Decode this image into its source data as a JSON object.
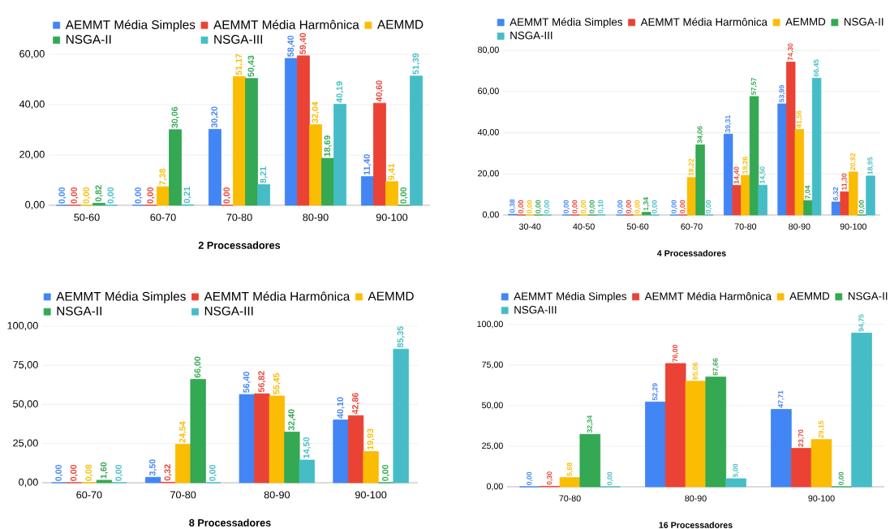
{
  "chart_data": [
    {
      "type": "bar",
      "xlabel": "2 Processadores",
      "categories": [
        "50-60",
        "60-70",
        "70-80",
        "80-90",
        "90-100"
      ],
      "ylim": [
        0,
        60
      ],
      "yticks": [
        {
          "value": 0,
          "label": "0,00"
        },
        {
          "value": 20,
          "label": "20,00"
        },
        {
          "value": 40,
          "label": "40,00"
        },
        {
          "value": 60,
          "label": "60,00"
        }
      ],
      "grid": "y",
      "legend": "top",
      "series": [
        {
          "name": "AEMMT Média Simples",
          "color": "#4285f4",
          "values": [
            0,
            0,
            30.2,
            58.4,
            11.4
          ],
          "value_labels": [
            "0,00",
            "0,00",
            "30,20",
            "58,40",
            "11,40"
          ]
        },
        {
          "name": "AEMMT Média Harmônica",
          "color": "#ea4335",
          "values": [
            0,
            0,
            0,
            59.4,
            40.6
          ],
          "value_labels": [
            "0,00",
            "0,00",
            "0,00",
            "59,40",
            "40,60"
          ]
        },
        {
          "name": "AEMMD",
          "color": "#fbbc04",
          "values": [
            0,
            7.38,
            51.17,
            32.04,
            9.41
          ],
          "value_labels": [
            "0,00",
            "7,38",
            "51,17",
            "32,04",
            "9,41"
          ]
        },
        {
          "name": "NSGA-II",
          "color": "#34a853",
          "values": [
            0.82,
            30.06,
            50.43,
            18.69,
            0
          ],
          "value_labels": [
            "0,82",
            "30,06",
            "50,43",
            "18,69",
            "0,00"
          ]
        },
        {
          "name": "NSGA-III",
          "color": "#46bdc6",
          "values": [
            0,
            0.21,
            8.21,
            40.19,
            51.39
          ],
          "value_labels": [
            "0,00",
            "0,21",
            "8,21",
            "40,19",
            "51,39"
          ]
        }
      ]
    },
    {
      "type": "bar",
      "xlabel": "4 Processadores",
      "categories": [
        "30-40",
        "40-50",
        "50-60",
        "60-70",
        "70-80",
        "80-90",
        "90-100"
      ],
      "ylim": [
        0,
        80
      ],
      "yticks": [
        {
          "value": 0,
          "label": "0,00"
        },
        {
          "value": 20,
          "label": "20,00"
        },
        {
          "value": 40,
          "label": "40,00"
        },
        {
          "value": 60,
          "label": "60,00"
        },
        {
          "value": 80,
          "label": "80,00"
        }
      ],
      "grid": "y",
      "legend": "top",
      "series": [
        {
          "name": "AEMMT Média Simples",
          "color": "#4285f4",
          "values": [
            0.38,
            0,
            0,
            0,
            39.31,
            53.99,
            6.32
          ],
          "value_labels": [
            "0,38",
            "0,00",
            "0,00",
            "0,00",
            "39,31",
            "53,99",
            "6,32"
          ]
        },
        {
          "name": "AEMMT Média Harmônica",
          "color": "#ea4335",
          "values": [
            0,
            0,
            0,
            0,
            14.4,
            74.3,
            11.3
          ],
          "value_labels": [
            "0,00",
            "0,00",
            "0,00",
            "0,00",
            "14,40",
            "74,30",
            "11,30"
          ]
        },
        {
          "name": "AEMMD",
          "color": "#fbbc04",
          "values": [
            0,
            0,
            0,
            18.22,
            19.26,
            41.56,
            20.92
          ],
          "value_labels": [
            "0,00",
            "0,00",
            "0,00",
            "18,22",
            "19,26",
            "41,56",
            "20,92"
          ]
        },
        {
          "name": "NSGA-II",
          "color": "#34a853",
          "values": [
            0,
            0,
            1.34,
            34.06,
            57.57,
            7.04,
            0
          ],
          "value_labels": [
            "0,00",
            "0,00",
            "1,34",
            "34,06",
            "57,57",
            "7,04",
            "0,00"
          ]
        },
        {
          "name": "NSGA-III",
          "color": "#46bdc6",
          "values": [
            0,
            0.1,
            0,
            0,
            14.5,
            66.45,
            18.95
          ],
          "value_labels": [
            "0,00",
            "0,10",
            "0,00",
            "0,00",
            "14,50",
            "66,45",
            "18,95"
          ]
        }
      ]
    },
    {
      "type": "bar",
      "xlabel": "8 Processadores",
      "categories": [
        "60-70",
        "70-80",
        "80-90",
        "90-100"
      ],
      "ylim": [
        0,
        100
      ],
      "yticks": [
        {
          "value": 0,
          "label": "0,00"
        },
        {
          "value": 25,
          "label": "25,00"
        },
        {
          "value": 50,
          "label": "50,00"
        },
        {
          "value": 75,
          "label": "75,00"
        },
        {
          "value": 100,
          "label": "100,00"
        }
      ],
      "grid": "y",
      "legend": "top",
      "series": [
        {
          "name": "AEMMT Média Simples",
          "color": "#4285f4",
          "values": [
            0,
            3.5,
            56.4,
            40.1
          ],
          "value_labels": [
            "0,00",
            "3,50",
            "56,40",
            "40,10"
          ]
        },
        {
          "name": "AEMMT Média Harmônica",
          "color": "#ea4335",
          "values": [
            0,
            0.32,
            56.82,
            42.86
          ],
          "value_labels": [
            "0,00",
            "0,32",
            "56,82",
            "42,86"
          ]
        },
        {
          "name": "AEMMD",
          "color": "#fbbc04",
          "values": [
            0.08,
            24.54,
            55.45,
            19.93
          ],
          "value_labels": [
            "0,08",
            "24,54",
            "55,45",
            "19,93"
          ]
        },
        {
          "name": "NSGA-II",
          "color": "#34a853",
          "values": [
            1.6,
            66.0,
            32.4,
            0
          ],
          "value_labels": [
            "1,60",
            "66,00",
            "32,40",
            "0,00"
          ]
        },
        {
          "name": "NSGA-III",
          "color": "#46bdc6",
          "values": [
            0,
            0,
            14.5,
            85.35
          ],
          "value_labels": [
            "0,00",
            "0,00",
            "14,50",
            "85,35"
          ]
        }
      ]
    },
    {
      "type": "bar",
      "xlabel": "16 Processadores",
      "categories": [
        "70-80",
        "80-90",
        "90-100"
      ],
      "ylim": [
        0,
        100
      ],
      "yticks": [
        {
          "value": 0,
          "label": "0,00"
        },
        {
          "value": 25,
          "label": "25,00"
        },
        {
          "value": 50,
          "label": "50,00"
        },
        {
          "value": 75,
          "label": "75,00"
        },
        {
          "value": 100,
          "label": "100,00"
        }
      ],
      "grid": "y",
      "legend": "top",
      "series": [
        {
          "name": "AEMMT Média Simples",
          "color": "#4285f4",
          "values": [
            0,
            52.29,
            47.71
          ],
          "value_labels": [
            "0,00",
            "52,29",
            "47,71"
          ]
        },
        {
          "name": "AEMMT Média Harmônica",
          "color": "#ea4335",
          "values": [
            0.3,
            76.0,
            23.7
          ],
          "value_labels": [
            "0,30",
            "76,00",
            "23,70"
          ]
        },
        {
          "name": "AEMMD",
          "color": "#fbbc04",
          "values": [
            5.68,
            65.06,
            29.15
          ],
          "value_labels": [
            "5,68",
            "65,06",
            "29,15"
          ]
        },
        {
          "name": "NSGA-II",
          "color": "#34a853",
          "values": [
            32.34,
            67.66,
            0
          ],
          "value_labels": [
            "32,34",
            "67,66",
            "0,00"
          ]
        },
        {
          "name": "NSGA-III",
          "color": "#46bdc6",
          "values": [
            0,
            5.0,
            94.75
          ],
          "value_labels": [
            "0,00",
            "5,00",
            "94,75"
          ]
        }
      ]
    }
  ]
}
